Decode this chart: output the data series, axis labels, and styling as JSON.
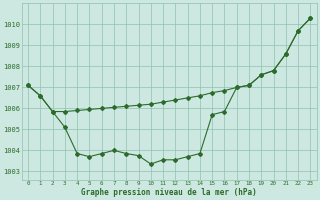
{
  "bg_color": "#cce8e0",
  "line_color": "#2d6b2d",
  "hours": [
    0,
    1,
    2,
    3,
    4,
    5,
    6,
    7,
    8,
    9,
    10,
    11,
    12,
    13,
    14,
    15,
    16,
    17,
    18,
    19,
    20,
    21,
    22,
    23
  ],
  "series_upper": [
    1007.1,
    1006.6,
    1005.85,
    1005.85,
    1005.9,
    1005.95,
    1006.0,
    1006.05,
    1006.1,
    1006.15,
    1006.2,
    1006.3,
    1006.4,
    1006.5,
    1006.6,
    1006.75,
    1006.85,
    1007.0,
    1007.1,
    1007.6,
    1007.8,
    1008.6,
    1009.7,
    1010.3
  ],
  "series_lower": [
    1007.1,
    1006.6,
    1005.85,
    1005.1,
    1003.85,
    1003.7,
    1003.85,
    1004.0,
    1003.85,
    1003.75,
    1003.35,
    1003.55,
    1003.55,
    1003.7,
    1003.85,
    1005.7,
    1005.85,
    1007.0,
    1007.1,
    1007.6,
    1007.8,
    1008.6,
    1009.7,
    1010.3
  ],
  "ylim_min": 1002.6,
  "ylim_max": 1011.0,
  "yticks": [
    1003,
    1004,
    1005,
    1006,
    1007,
    1008,
    1009,
    1010
  ],
  "xlabel": "Graphe pression niveau de la mer (hPa)"
}
